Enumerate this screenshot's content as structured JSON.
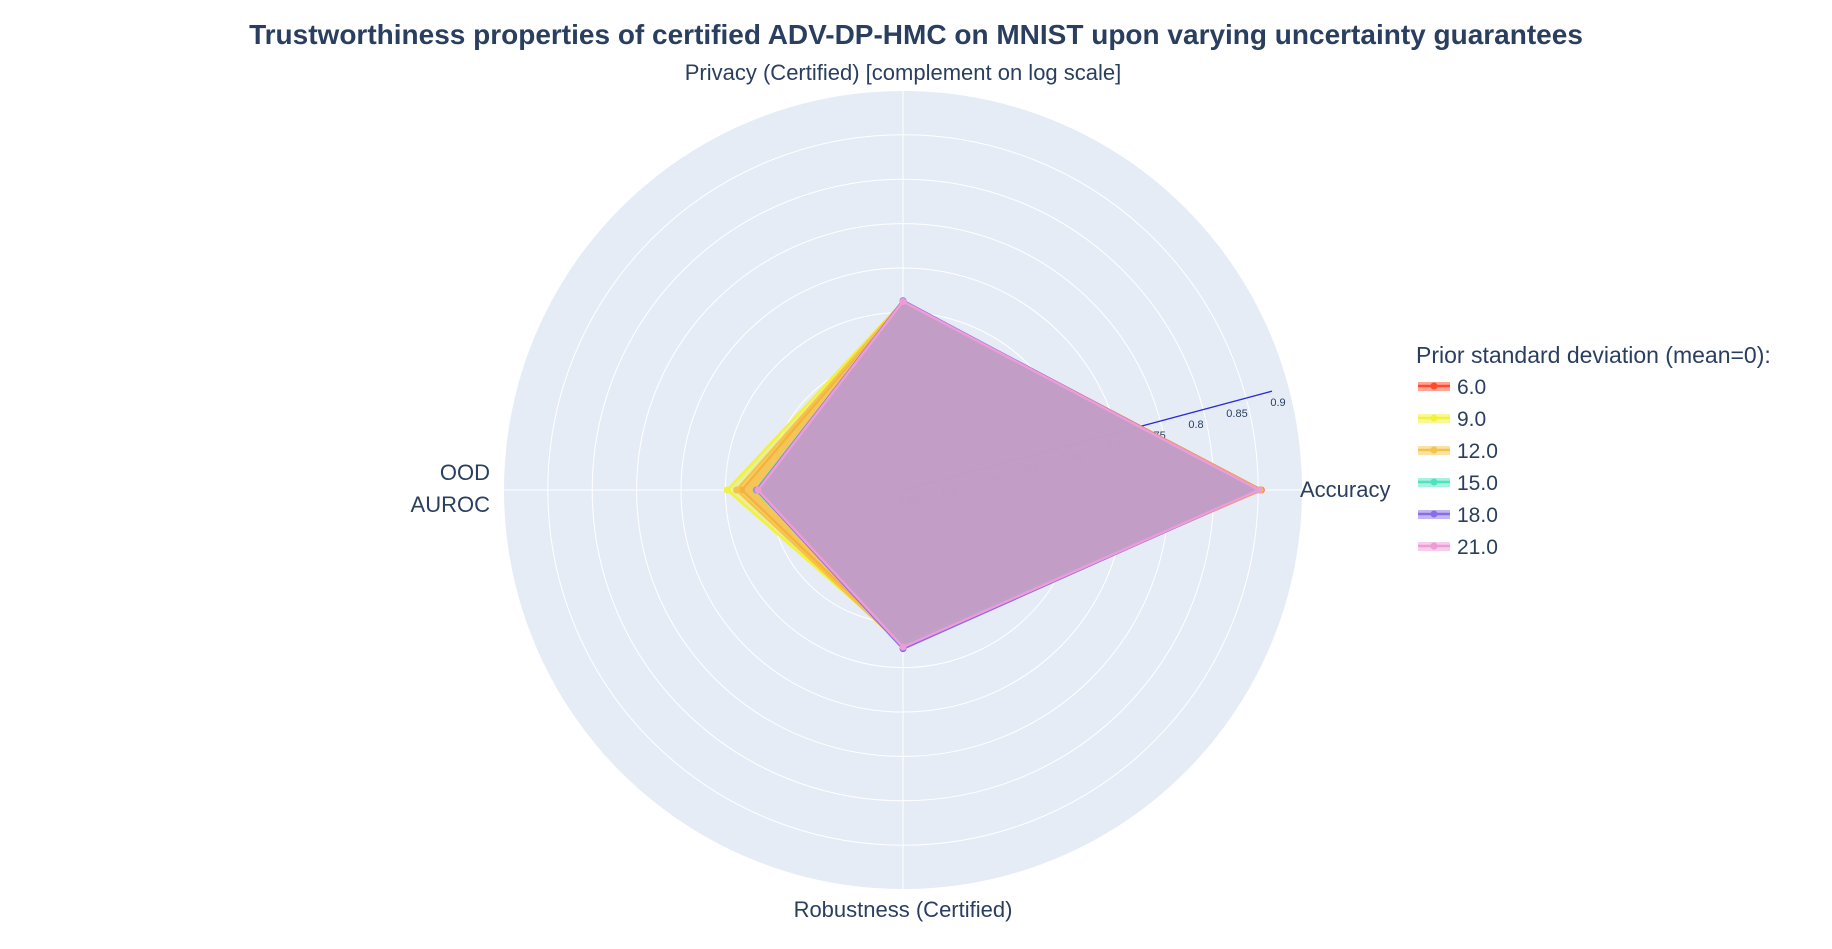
{
  "chart_data": {
    "type": "radar",
    "title": "Trustworthiness properties of certified ADV-DP-HMC on MNIST upon varying uncertainty guarantees",
    "axes": [
      {
        "name": "Accuracy",
        "lines": [
          "Accuracy"
        ]
      },
      {
        "name": "Privacy (Certified) [complement on log scale]",
        "lines": [
          "Privacy (Certified) [complement on log scale]"
        ]
      },
      {
        "name": "OOD AUROC",
        "lines": [
          "OOD",
          "AUROC"
        ]
      },
      {
        "name": "Robustness (Certified)",
        "lines": [
          "Robustness (Certified)"
        ]
      }
    ],
    "radial_range": [
      0.45,
      0.9
    ],
    "radial_ticks": [
      "0.45",
      "0.5",
      "0.55",
      "0.6",
      "0.65",
      "0.7",
      "0.75",
      "0.8",
      "0.85",
      "0.9"
    ],
    "radial_axis_angle_deg": 15,
    "grid": true,
    "legend_title": "Prior standard deviation (mean=0):",
    "legend_position": "right",
    "series": [
      {
        "name": "6.0",
        "color": "#ff4a2e",
        "values": [
          0.872,
          0.672,
          0.64,
          0.632
        ]
      },
      {
        "name": "9.0",
        "color": "#f2f238",
        "values": [
          0.87,
          0.672,
          0.657,
          0.631
        ]
      },
      {
        "name": "12.0",
        "color": "#f5c34a",
        "values": [
          0.871,
          0.672,
          0.646,
          0.634
        ]
      },
      {
        "name": "15.0",
        "color": "#4fe3c0",
        "values": [
          0.868,
          0.672,
          0.623,
          0.634
        ]
      },
      {
        "name": "18.0",
        "color": "#8a6ee6",
        "values": [
          0.869,
          0.673,
          0.622,
          0.637
        ]
      },
      {
        "name": "21.0",
        "color": "#ee9bd6",
        "values": [
          0.869,
          0.672,
          0.621,
          0.635
        ]
      }
    ]
  }
}
